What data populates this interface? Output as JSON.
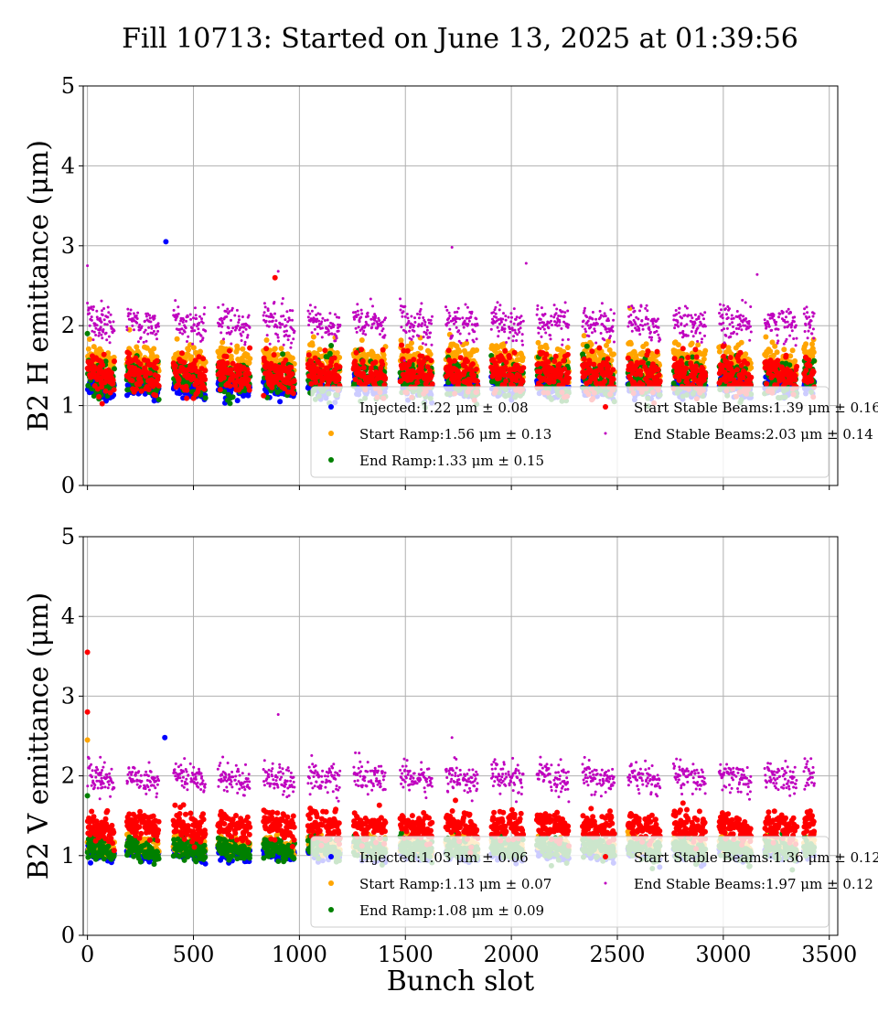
{
  "figure_title": "Fill 10713: Started on June 13, 2025 at 01:39:56",
  "colors": {
    "injected": "#0000ff",
    "start_ramp": "#ffa500",
    "end_ramp": "#008000",
    "start_stable": "#ff0000",
    "end_stable": "#bf00bf"
  },
  "chart_data": [
    {
      "type": "scatter",
      "title": "",
      "xlabel": "",
      "ylabel": "B2 H emittance (μm)",
      "xlim": [
        -20,
        3540
      ],
      "ylim": [
        0,
        5
      ],
      "xticks": [
        "0",
        "500",
        "1000",
        "1500",
        "2000",
        "2500",
        "3000",
        "3500"
      ],
      "yticks": [
        "0",
        "1",
        "2",
        "3",
        "4",
        "5"
      ],
      "grid": true,
      "legend_position": "lower-right",
      "x_range_of_points": [
        0,
        3430
      ],
      "series": [
        {
          "name": "Injected",
          "label": "Injected:1.22 μm ± 0.08",
          "mean": 1.22,
          "std": 0.08,
          "color": "#0000ff",
          "outliers": [
            [
              370,
              3.05
            ]
          ]
        },
        {
          "name": "Start Ramp",
          "label": "Start Ramp:1.56 μm ± 0.13",
          "mean": 1.56,
          "std": 0.13,
          "color": "#ffa500",
          "outliers": [
            [
              2560,
              2.22
            ]
          ]
        },
        {
          "name": "End Ramp",
          "label": "End Ramp:1.33 μm ± 0.15",
          "mean": 1.33,
          "std": 0.15,
          "color": "#008000",
          "outliers": [
            [
              0,
              1.9
            ]
          ]
        },
        {
          "name": "Start Stable Beams",
          "label": "Start Stable Beams:1.39 μm ± 0.16",
          "mean": 1.39,
          "std": 0.16,
          "color": "#ff0000",
          "outliers": [
            [
              885,
              2.6
            ]
          ]
        },
        {
          "name": "End Stable Beams",
          "label": "End Stable Beams:2.03 μm ± 0.14",
          "mean": 2.03,
          "std": 0.14,
          "color": "#bf00bf",
          "outliers": [
            [
              0,
              2.75
            ],
            [
              1720,
              2.98
            ],
            [
              2070,
              2.78
            ],
            [
              3160,
              2.64
            ],
            [
              900,
              2.68
            ]
          ]
        }
      ]
    },
    {
      "type": "scatter",
      "title": "",
      "xlabel": "Bunch slot",
      "ylabel": "B2 V emittance (μm)",
      "xlim": [
        -20,
        3540
      ],
      "ylim": [
        0,
        5
      ],
      "xticks": [
        "0",
        "500",
        "1000",
        "1500",
        "2000",
        "2500",
        "3000",
        "3500"
      ],
      "yticks": [
        "0",
        "1",
        "2",
        "3",
        "4",
        "5"
      ],
      "grid": true,
      "legend_position": "lower-right",
      "x_range_of_points": [
        0,
        3430
      ],
      "series": [
        {
          "name": "Injected",
          "label": "Injected:1.03 μm ± 0.06",
          "mean": 1.03,
          "std": 0.06,
          "color": "#0000ff",
          "outliers": [
            [
              365,
              2.48
            ]
          ]
        },
        {
          "name": "Start Ramp",
          "label": "Start Ramp:1.13 μm ± 0.07",
          "mean": 1.13,
          "std": 0.07,
          "color": "#ffa500",
          "outliers": [
            [
              0,
              2.45
            ]
          ]
        },
        {
          "name": "End Ramp",
          "label": "End Ramp:1.08 μm ± 0.09",
          "mean": 1.08,
          "std": 0.09,
          "color": "#008000",
          "outliers": [
            [
              0,
              1.75
            ]
          ]
        },
        {
          "name": "Start Stable Beams",
          "label": "Start Stable Beams:1.36 μm ± 0.12",
          "mean": 1.36,
          "std": 0.12,
          "color": "#ff0000",
          "outliers": [
            [
              0,
              3.55
            ],
            [
              0,
              2.8
            ]
          ]
        },
        {
          "name": "End Stable Beams",
          "label": "End Stable Beams:1.97 μm ± 0.12",
          "mean": 1.97,
          "std": 0.12,
          "color": "#bf00bf",
          "outliers": [
            [
              900,
              2.77
            ],
            [
              1720,
              2.48
            ]
          ]
        }
      ]
    }
  ]
}
